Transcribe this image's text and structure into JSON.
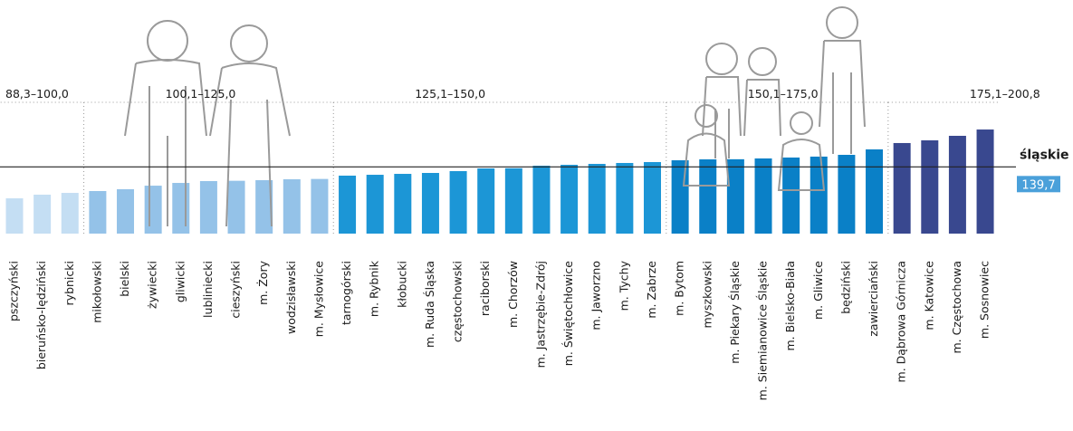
{
  "chart_data": {
    "type": "bar",
    "series": [
      {
        "name": "88,3–100,0",
        "color": "#c4def3",
        "categories": [
          "pszczyński",
          "bieruńsko-lędziński",
          "rybnicki"
        ],
        "values": [
          88.3,
          94.3,
          97.2
        ]
      },
      {
        "name": "100,1–125,0",
        "color": "#94c2e8",
        "categories": [
          "mikołowski",
          "bielski",
          "żywiecki",
          "gliwicki",
          "lubliniecki",
          "cieszyński",
          "m. Żory",
          "wodzisławski",
          "m. Mysłowice"
        ],
        "values": [
          100.2,
          103.2,
          109.0,
          113.5,
          116.5,
          117.0,
          118.0,
          119.5,
          120.0
        ]
      },
      {
        "name": "125,1–150,0",
        "color": "#1c96d6",
        "categories": [
          "tarnogórski",
          "m. Rybnik",
          "kłobucki",
          "m. Ruda Śląska",
          "częstochowski",
          "raciborski",
          "m. Chorzów",
          "m. Jastrzębie-Zdrój",
          "m. Świętochłowice",
          "m. Jaworzno",
          "m. Tychy",
          "m. Zabrze"
        ],
        "values": [
          125.4,
          126.8,
          128.3,
          129.8,
          132.8,
          137.2,
          137.5,
          141.6,
          143.1,
          144.6,
          146.1,
          147.6
        ]
      },
      {
        "name": "150,1–175,0",
        "color": "#0a80c7",
        "categories": [
          "m. Bytom",
          "myszkowski",
          "m. Piekary Śląskie",
          "m. Siemianowice Śląskie",
          "m. Bielsko-Biała",
          "m. Gliwice",
          "będziński",
          "zawierciański"
        ],
        "values": [
          150.5,
          152.0,
          152.2,
          153.5,
          155.0,
          156.5,
          159.4,
          168.3
        ]
      },
      {
        "name": "175,1–200,8",
        "color": "#39488f",
        "categories": [
          "m. Dąbrowa Górnicza",
          "m. Katowice",
          "m. Częstochowa",
          "m. Sosnowiec"
        ],
        "values": [
          178.7,
          183.1,
          190.5,
          200.8
        ]
      }
    ],
    "reference": {
      "label": "śląskie",
      "value": 139.7,
      "value_label": "139,7",
      "color": "#4aa0da"
    }
  }
}
